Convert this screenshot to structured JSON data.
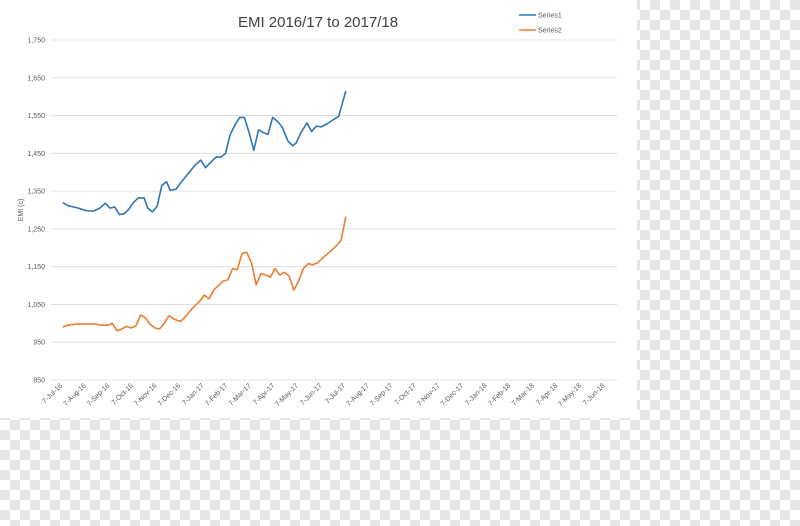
{
  "chart_data": {
    "type": "line",
    "title": "EMI 2016/17 to 2017/18",
    "ylabel": "EMI (c)",
    "xlabel": "",
    "ylim": [
      850,
      1750
    ],
    "yticks": [
      "1,750",
      "1,650",
      "1,550",
      "1,450",
      "1,350",
      "1,250",
      "1,150",
      "1,050",
      "950",
      "850"
    ],
    "ytick_values": [
      1750,
      1650,
      1550,
      1450,
      1350,
      1250,
      1150,
      1050,
      950,
      850
    ],
    "categories": [
      "7-Jul-16",
      "7-Aug-16",
      "7-Sep-16",
      "7-Oct-16",
      "7-Nov-16",
      "7-Dec-16",
      "7-Jan-17",
      "7-Feb-17",
      "7-Mar-17",
      "7-Apr-17",
      "7-May-17",
      "7-Jun-17",
      "7-Jul-17",
      "7-Aug-17",
      "7-Sep-17",
      "7-Oct-17",
      "7-Nov-17",
      "7-Dec-17",
      "7-Jan-18",
      "7-Feb-18",
      "7-Mar-18",
      "7-Apr-18",
      "7-May-18",
      "7-Jun-18"
    ],
    "grid": true,
    "legend_position": "top-right",
    "series": [
      {
        "name": "Series1",
        "color": "#2e75b6",
        "points": [
          [
            0,
            1320
          ],
          [
            0.2,
            1312
          ],
          [
            0.6,
            1306
          ],
          [
            1.0,
            1298
          ],
          [
            1.3,
            1297
          ],
          [
            1.6,
            1306
          ],
          [
            1.8,
            1318
          ],
          [
            2.0,
            1305
          ],
          [
            2.2,
            1308
          ],
          [
            2.4,
            1288
          ],
          [
            2.6,
            1290
          ],
          [
            2.8,
            1302
          ],
          [
            3.0,
            1320
          ],
          [
            3.2,
            1332
          ],
          [
            3.45,
            1332
          ],
          [
            3.6,
            1305
          ],
          [
            3.8,
            1295
          ],
          [
            4.0,
            1310
          ],
          [
            4.2,
            1365
          ],
          [
            4.4,
            1375
          ],
          [
            4.55,
            1352
          ],
          [
            4.8,
            1355
          ],
          [
            5.0,
            1372
          ],
          [
            5.3,
            1395
          ],
          [
            5.6,
            1418
          ],
          [
            5.85,
            1432
          ],
          [
            6.05,
            1412
          ],
          [
            6.3,
            1428
          ],
          [
            6.5,
            1440
          ],
          [
            6.7,
            1440
          ],
          [
            6.9,
            1450
          ],
          [
            7.1,
            1500
          ],
          [
            7.3,
            1525
          ],
          [
            7.5,
            1545
          ],
          [
            7.7,
            1545
          ],
          [
            7.9,
            1505
          ],
          [
            8.1,
            1458
          ],
          [
            8.3,
            1512
          ],
          [
            8.5,
            1505
          ],
          [
            8.7,
            1500
          ],
          [
            8.9,
            1545
          ],
          [
            9.1,
            1535
          ],
          [
            9.3,
            1520
          ],
          [
            9.55,
            1482
          ],
          [
            9.75,
            1470
          ],
          [
            9.9,
            1478
          ],
          [
            10.1,
            1505
          ],
          [
            10.35,
            1530
          ],
          [
            10.55,
            1508
          ],
          [
            10.75,
            1522
          ],
          [
            10.95,
            1520
          ],
          [
            11.2,
            1528
          ],
          [
            11.45,
            1538
          ],
          [
            11.7,
            1548
          ],
          [
            12.0,
            1615
          ]
        ]
      },
      {
        "name": "Series2",
        "color": "#ed7d31",
        "points": [
          [
            0,
            990
          ],
          [
            0.2,
            995
          ],
          [
            0.6,
            998
          ],
          [
            1.0,
            998
          ],
          [
            1.4,
            998
          ],
          [
            1.6,
            995
          ],
          [
            1.9,
            995
          ],
          [
            2.1,
            1000
          ],
          [
            2.3,
            980
          ],
          [
            2.5,
            985
          ],
          [
            2.7,
            992
          ],
          [
            2.9,
            988
          ],
          [
            3.1,
            993
          ],
          [
            3.3,
            1022
          ],
          [
            3.5,
            1015
          ],
          [
            3.7,
            998
          ],
          [
            3.9,
            988
          ],
          [
            4.1,
            985
          ],
          [
            4.3,
            1000
          ],
          [
            4.5,
            1020
          ],
          [
            4.75,
            1010
          ],
          [
            5.0,
            1005
          ],
          [
            5.2,
            1018
          ],
          [
            5.5,
            1040
          ],
          [
            5.8,
            1058
          ],
          [
            6.0,
            1075
          ],
          [
            6.2,
            1065
          ],
          [
            6.4,
            1088
          ],
          [
            6.6,
            1100
          ],
          [
            6.8,
            1112
          ],
          [
            7.0,
            1115
          ],
          [
            7.2,
            1145
          ],
          [
            7.4,
            1142
          ],
          [
            7.6,
            1185
          ],
          [
            7.8,
            1188
          ],
          [
            8.0,
            1160
          ],
          [
            8.2,
            1102
          ],
          [
            8.4,
            1132
          ],
          [
            8.6,
            1128
          ],
          [
            8.8,
            1122
          ],
          [
            9.0,
            1145
          ],
          [
            9.2,
            1128
          ],
          [
            9.4,
            1135
          ],
          [
            9.6,
            1125
          ],
          [
            9.8,
            1088
          ],
          [
            10.0,
            1112
          ],
          [
            10.2,
            1145
          ],
          [
            10.4,
            1158
          ],
          [
            10.6,
            1155
          ],
          [
            10.8,
            1160
          ],
          [
            11.0,
            1172
          ],
          [
            11.3,
            1188
          ],
          [
            11.6,
            1205
          ],
          [
            11.8,
            1220
          ],
          [
            12.0,
            1282
          ]
        ]
      }
    ]
  }
}
